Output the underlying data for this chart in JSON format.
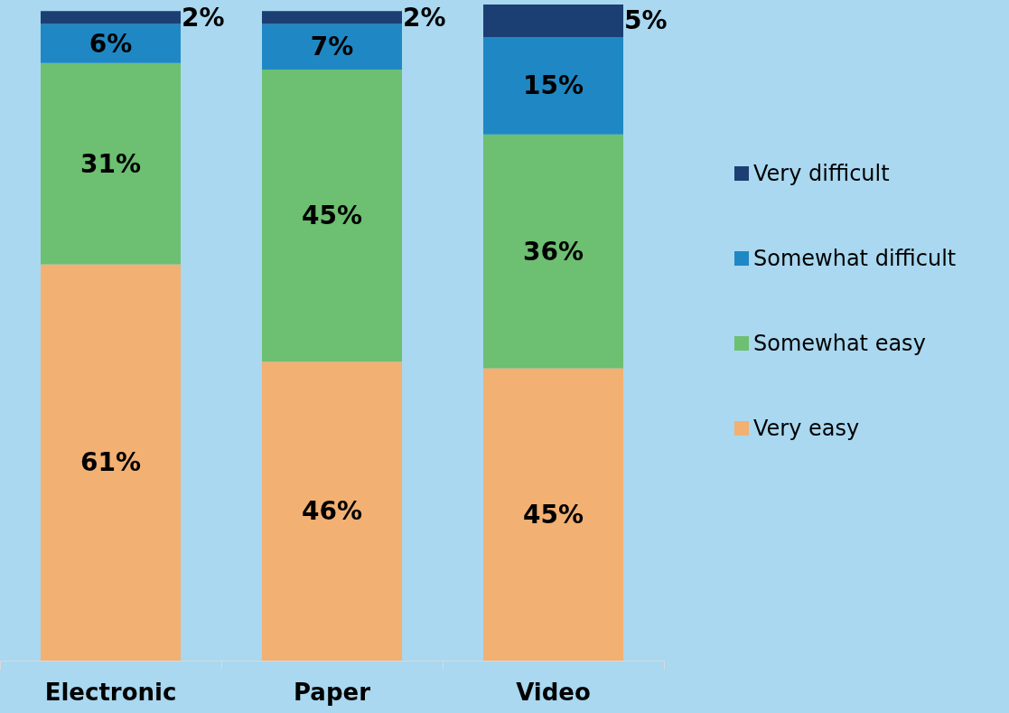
{
  "chart_data": {
    "type": "bar",
    "stacked": true,
    "categories": [
      "Electronic",
      "Paper",
      "Video"
    ],
    "series": [
      {
        "name": "Very easy",
        "color": "#f2b073",
        "values": [
          61,
          46,
          45
        ],
        "value_labels": [
          "61%",
          "46%",
          "45%"
        ]
      },
      {
        "name": "Somewhat easy",
        "color": "#6dbf72",
        "values": [
          31,
          45,
          36
        ],
        "value_labels": [
          "31%",
          "45%",
          "36%"
        ]
      },
      {
        "name": "Somewhat difficult",
        "color": "#1f88c4",
        "values": [
          6,
          7,
          15
        ],
        "value_labels": [
          "6%",
          "7%",
          "15%"
        ]
      },
      {
        "name": "Very difficult",
        "color": "#1c3f73",
        "values": [
          2,
          2,
          5
        ],
        "value_labels": [
          "2%",
          "2%",
          "5%"
        ]
      }
    ],
    "legend": "right"
  }
}
